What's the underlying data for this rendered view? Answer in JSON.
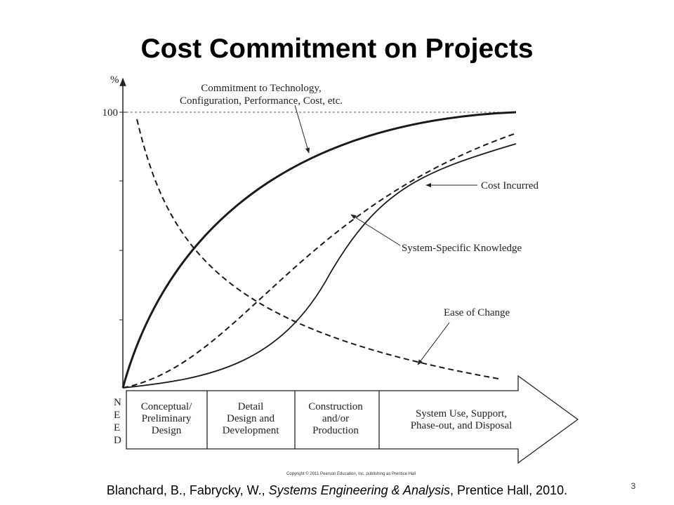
{
  "title": "Cost Commitment on Projects",
  "axis": {
    "y_label": "%",
    "y_tick": "100",
    "x_start": [
      "N",
      "E",
      "E",
      "D"
    ]
  },
  "curves": [
    {
      "label_lines": [
        "Commitment to Technology,",
        "Configuration, Performance, Cost, etc."
      ]
    },
    {
      "label_lines": [
        "Cost Incurred"
      ]
    },
    {
      "label_lines": [
        "System-Specific Knowledge"
      ]
    },
    {
      "label_lines": [
        "Ease of Change"
      ]
    }
  ],
  "phases": [
    {
      "lines": [
        "Conceptual/",
        "Preliminary",
        "Design"
      ]
    },
    {
      "lines": [
        "Detail",
        "Design and",
        "Development"
      ]
    },
    {
      "lines": [
        "Construction",
        "and/or",
        "Production"
      ]
    },
    {
      "lines": [
        "System Use, Support,",
        "Phase-out, and Disposal"
      ]
    }
  ],
  "copyright": "Copyright © 2011 Pearson Education, Inc. publishing as Prentice Hall",
  "citation": {
    "before": "Blanchard, B., Fabrycky, W., ",
    "italic": "Systems Engineering & Analysis",
    "after": ", Prentice Hall, 2010."
  },
  "page_number": "3"
}
